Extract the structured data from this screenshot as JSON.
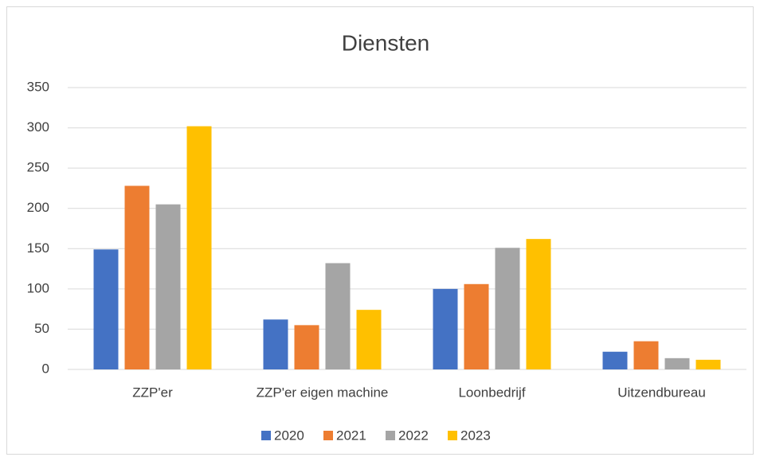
{
  "chart_data": {
    "type": "bar",
    "title": "Diensten",
    "categories": [
      "ZZP'er",
      "ZZP'er eigen machine",
      "Loonbedrijf",
      "Uitzendbureau"
    ],
    "series": [
      {
        "name": "2020",
        "color": "#4472c4",
        "values": [
          149,
          62,
          100,
          22
        ]
      },
      {
        "name": "2021",
        "color": "#ed7d31",
        "values": [
          228,
          55,
          106,
          35
        ]
      },
      {
        "name": "2022",
        "color": "#a5a5a5",
        "values": [
          205,
          132,
          151,
          14
        ]
      },
      {
        "name": "2023",
        "color": "#ffc000",
        "values": [
          302,
          74,
          162,
          12
        ]
      }
    ],
    "ylim": [
      0,
      350
    ],
    "yticks": [
      0,
      50,
      100,
      150,
      200,
      250,
      300,
      350
    ],
    "grid": true,
    "legend": "bottom"
  }
}
